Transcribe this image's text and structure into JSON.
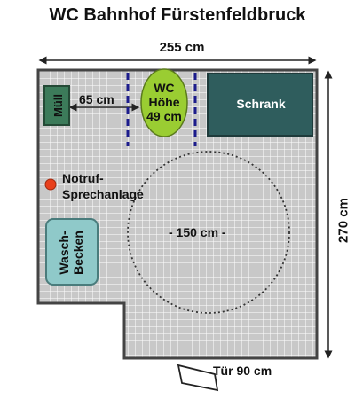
{
  "title": "WC Bahnhof Fürstenfeldbruck",
  "dimensions": {
    "width": "255 cm",
    "height": "270 cm",
    "spacing": "65 cm",
    "turning_circle": "- 150 cm -",
    "door": "Tür 90 cm"
  },
  "fixtures": {
    "wc_label": "WC Höhe 49 cm",
    "cabinet": "Schrank",
    "bin": "Müll",
    "sink": "Wasch-Becken",
    "emergency_line1": "Notruf-",
    "emergency_line2": "Sprechanlage"
  },
  "colors": {
    "floor": "#c8c8c8",
    "grid": "#ffffff",
    "wall": "#444444",
    "wc": "#9acd32",
    "cabinet": "#2f5d5d",
    "bin": "#3c7b5a",
    "sink": "#8fc9c9",
    "emergency": "#e8401c",
    "dashed": "#1c1c8c"
  }
}
